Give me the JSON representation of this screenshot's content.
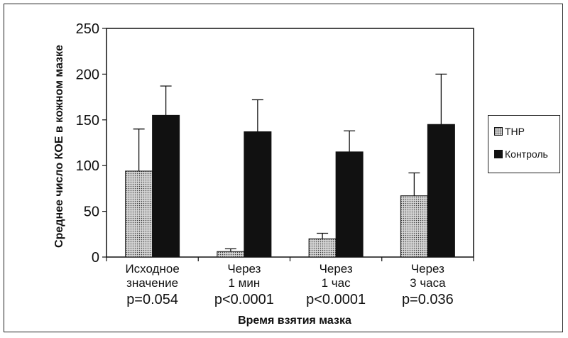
{
  "chart_data": {
    "type": "bar",
    "title": "",
    "xlabel": "Время взятия мазка",
    "ylabel": "Среднее число КОЕ в кожном мазке",
    "ylim": [
      0,
      250
    ],
    "yticks": [
      "0",
      "50",
      "100",
      "150",
      "200",
      "250"
    ],
    "grid": false,
    "legend_position": "right",
    "categories": [
      {
        "lines": [
          "Исходное",
          "значение"
        ],
        "pvalue": "p=0.054"
      },
      {
        "lines": [
          "Через",
          "1 мин"
        ],
        "pvalue": "p<0.0001"
      },
      {
        "lines": [
          "Через",
          "1 час"
        ],
        "pvalue": "p<0.0001"
      },
      {
        "lines": [
          "Через",
          "3 часа"
        ],
        "pvalue": "p=0.036"
      }
    ],
    "series": [
      {
        "name": "THP",
        "color": "#bfbfbf",
        "values": [
          94,
          6,
          20,
          67
        ],
        "error_upper": [
          140,
          9,
          26,
          92
        ]
      },
      {
        "name": "Контроль",
        "color": "#111111",
        "values": [
          155,
          137,
          115,
          145
        ],
        "error_upper": [
          187,
          172,
          138,
          200
        ]
      }
    ]
  }
}
